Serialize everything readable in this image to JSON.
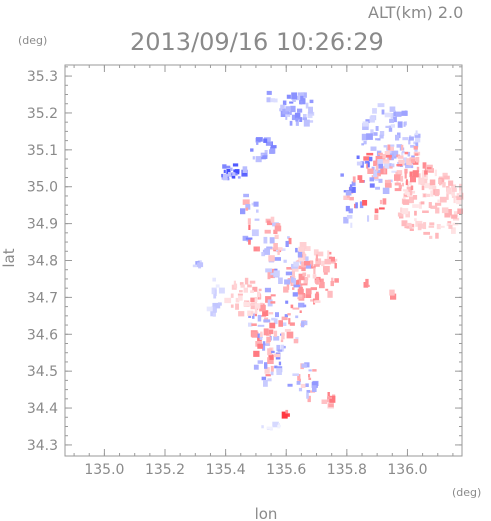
{
  "header": {
    "altitude_label": "ALT(km) 2.0",
    "timestamp": "2013/09/16 10:26:29",
    "y_unit": "(deg)",
    "x_unit": "(deg)"
  },
  "chart_data": {
    "type": "scatter",
    "title": "2013/09/16 10:26:29",
    "xlabel": "lon",
    "ylabel": "lat",
    "xlim": [
      134.87,
      136.18
    ],
    "ylim": [
      34.27,
      35.33
    ],
    "x_ticks": [
      "135.0",
      "135.2",
      "135.4",
      "135.6",
      "135.8",
      "136.0"
    ],
    "y_ticks": [
      "34.3",
      "34.4",
      "34.5",
      "34.6",
      "34.7",
      "34.8",
      "34.9",
      "35.0",
      "35.1",
      "35.2",
      "35.3"
    ],
    "grid": false,
    "colors": {
      "positive": "#e8333f",
      "negative": "#4a56e0",
      "axis": "#9a9a9a"
    },
    "clusters": [
      {
        "lon": 135.65,
        "lat": 35.21,
        "rlon": 0.04,
        "rlat": 0.03,
        "n": 40,
        "sign": -1,
        "amp": 0.6
      },
      {
        "lon": 135.55,
        "lat": 35.24,
        "rlon": 0.01,
        "rlat": 0.01,
        "n": 4,
        "sign": -1,
        "amp": 0.5
      },
      {
        "lon": 135.52,
        "lat": 35.1,
        "rlon": 0.025,
        "rlat": 0.02,
        "n": 18,
        "sign": -1,
        "amp": 0.7
      },
      {
        "lon": 135.42,
        "lat": 35.04,
        "rlon": 0.03,
        "rlat": 0.015,
        "n": 22,
        "sign": -1,
        "amp": 0.9
      },
      {
        "lon": 135.94,
        "lat": 35.12,
        "rlon": 0.06,
        "rlat": 0.07,
        "n": 90,
        "sign": -1,
        "amp": 0.45
      },
      {
        "lon": 136.08,
        "lat": 34.95,
        "rlon": 0.07,
        "rlat": 0.06,
        "n": 110,
        "sign": 1,
        "amp": 0.35
      },
      {
        "lon": 135.98,
        "lat": 35.05,
        "rlon": 0.06,
        "rlat": 0.04,
        "n": 60,
        "sign": 1,
        "amp": 0.55
      },
      {
        "lon": 135.86,
        "lat": 35.0,
        "rlon": 0.05,
        "rlat": 0.06,
        "n": 45,
        "sign": 0,
        "amp": 0.7
      },
      {
        "lon": 135.7,
        "lat": 34.76,
        "rlon": 0.05,
        "rlat": 0.05,
        "n": 70,
        "sign": 1,
        "amp": 0.5
      },
      {
        "lon": 135.6,
        "lat": 34.8,
        "rlon": 0.05,
        "rlat": 0.04,
        "n": 40,
        "sign": 0,
        "amp": 0.5
      },
      {
        "lon": 135.57,
        "lat": 34.66,
        "rlon": 0.06,
        "rlat": 0.07,
        "n": 90,
        "sign": 0,
        "amp": 0.55
      },
      {
        "lon": 135.46,
        "lat": 34.7,
        "rlon": 0.04,
        "rlat": 0.03,
        "n": 30,
        "sign": 1,
        "amp": 0.3
      },
      {
        "lon": 135.54,
        "lat": 34.52,
        "rlon": 0.03,
        "rlat": 0.04,
        "n": 28,
        "sign": 0,
        "amp": 0.6
      },
      {
        "lon": 135.66,
        "lat": 34.47,
        "rlon": 0.03,
        "rlat": 0.03,
        "n": 22,
        "sign": 0,
        "amp": 0.5
      },
      {
        "lon": 135.74,
        "lat": 34.42,
        "rlon": 0.015,
        "rlat": 0.01,
        "n": 8,
        "sign": 1,
        "amp": 0.6
      },
      {
        "lon": 135.52,
        "lat": 34.86,
        "rlon": 0.04,
        "rlat": 0.04,
        "n": 26,
        "sign": 0,
        "amp": 0.6
      },
      {
        "lon": 135.37,
        "lat": 34.69,
        "rlon": 0.02,
        "rlat": 0.04,
        "n": 14,
        "sign": -1,
        "amp": 0.3
      },
      {
        "lon": 135.31,
        "lat": 34.79,
        "rlon": 0.01,
        "rlat": 0.015,
        "n": 5,
        "sign": -1,
        "amp": 0.5
      },
      {
        "lon": 135.56,
        "lat": 34.35,
        "rlon": 0.03,
        "rlat": 0.005,
        "n": 8,
        "sign": -1,
        "amp": 0.2
      },
      {
        "lon": 135.6,
        "lat": 34.385,
        "rlon": 0.004,
        "rlat": 0.004,
        "n": 3,
        "sign": 1,
        "amp": 1.0
      },
      {
        "lon": 135.87,
        "lat": 34.74,
        "rlon": 0.01,
        "rlat": 0.01,
        "n": 3,
        "sign": 1,
        "amp": 0.5
      },
      {
        "lon": 135.94,
        "lat": 34.7,
        "rlon": 0.01,
        "rlat": 0.01,
        "n": 3,
        "sign": 1,
        "amp": 0.5
      },
      {
        "lon": 135.48,
        "lat": 34.95,
        "rlon": 0.02,
        "rlat": 0.02,
        "n": 8,
        "sign": 0,
        "amp": 0.5
      },
      {
        "lon": 135.81,
        "lat": 34.91,
        "rlon": 0.01,
        "rlat": 0.01,
        "n": 3,
        "sign": -1,
        "amp": 0.4
      }
    ]
  }
}
